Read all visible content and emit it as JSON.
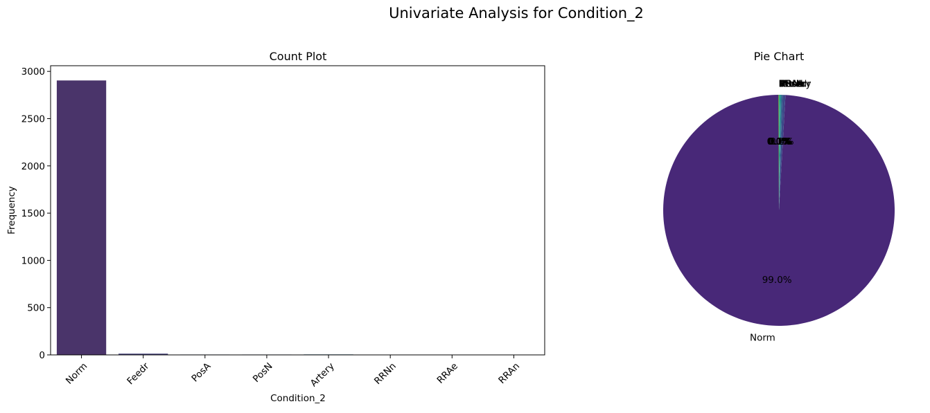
{
  "figure": {
    "suptitle": "Univariate Analysis for Condition_2"
  },
  "chart_data": [
    {
      "type": "bar",
      "title": "Count Plot",
      "xlabel": "Condition_2",
      "ylabel": "Frequency",
      "categories": [
        "Norm",
        "Feedr",
        "PosA",
        "PosN",
        "Artery",
        "RRNn",
        "RRAe",
        "RRAn"
      ],
      "values": [
        2904,
        13,
        4,
        4,
        5,
        2,
        1,
        1
      ],
      "colors": [
        "#4a346a",
        "#46437e",
        "#3f5185",
        "#355f8a",
        "#2e6d8e",
        "#2a7b8e",
        "#238a8d",
        "#1f988b"
      ],
      "ylim": [
        0,
        3060
      ],
      "yticks": [
        0,
        500,
        1000,
        1500,
        2000,
        2500,
        3000
      ],
      "legend": "none",
      "grid": false
    },
    {
      "type": "pie",
      "title": "Pie Chart",
      "labels": [
        "Norm",
        "Feedr",
        "Artery",
        "PosA",
        "PosN",
        "RRNn",
        "RRAe",
        "RRAn"
      ],
      "values": [
        99.0,
        0.4,
        0.2,
        0.1,
        0.1,
        0.1,
        0.0,
        0.0
      ],
      "autopct_labels": [
        "99.0%",
        "0.4%",
        "0.2%",
        "0.1%",
        "0.1%",
        "0.1%",
        "0.0%",
        "0.0%"
      ],
      "colors": [
        "#482878",
        "#3e4989",
        "#31688e",
        "#26828e",
        "#1f9e89",
        "#35b779",
        "#6ece58",
        "#b5de2b"
      ],
      "start_angle_deg": 90,
      "legend": "none"
    }
  ]
}
